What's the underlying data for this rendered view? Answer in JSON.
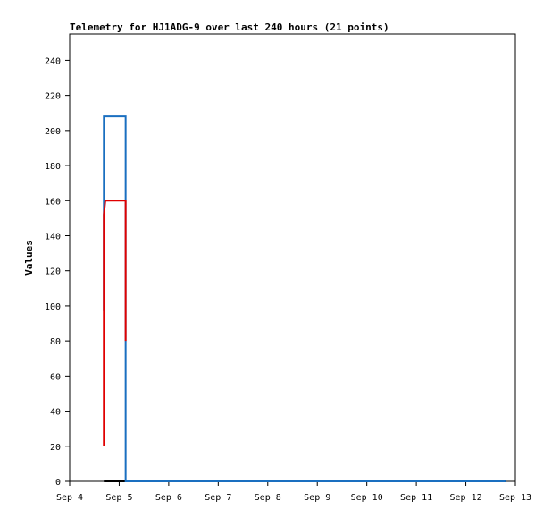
{
  "chart_data": {
    "type": "line",
    "title": "Telemetry for HJ1ADG-9 over last 240 hours (21 points)",
    "y_label": "Values",
    "xlim": [
      4,
      13
    ],
    "xticks": [
      {
        "value": 4,
        "label": "Sep 4"
      },
      {
        "value": 5,
        "label": "Sep 5"
      },
      {
        "value": 6,
        "label": "Sep 6"
      },
      {
        "value": 7,
        "label": "Sep 7"
      },
      {
        "value": 8,
        "label": "Sep 8"
      },
      {
        "value": 9,
        "label": "Sep 9"
      },
      {
        "value": 10,
        "label": "Sep 10"
      },
      {
        "value": 11,
        "label": "Sep 11"
      },
      {
        "value": 12,
        "label": "Sep 12"
      },
      {
        "value": 13,
        "label": "Sep 13"
      }
    ],
    "ylim": [
      0,
      255
    ],
    "yticks": [
      0,
      20,
      40,
      60,
      80,
      100,
      120,
      140,
      160,
      180,
      200,
      220,
      240
    ],
    "series": [
      {
        "color": "#000000",
        "x": [
          4.69,
          12.8
        ],
        "values": [
          0,
          0
        ]
      },
      {
        "color": "#1a6fc0",
        "x": [
          4.69,
          4.69,
          5.13,
          5.13,
          12.8
        ],
        "values": [
          97,
          208,
          208,
          0,
          0
        ]
      },
      {
        "color": "#e00000",
        "x": [
          4.69,
          4.69,
          4.69,
          4.72,
          5.13,
          5.13,
          5.13
        ],
        "values": [
          20,
          90,
          152,
          160,
          160,
          104,
          80
        ]
      }
    ]
  }
}
